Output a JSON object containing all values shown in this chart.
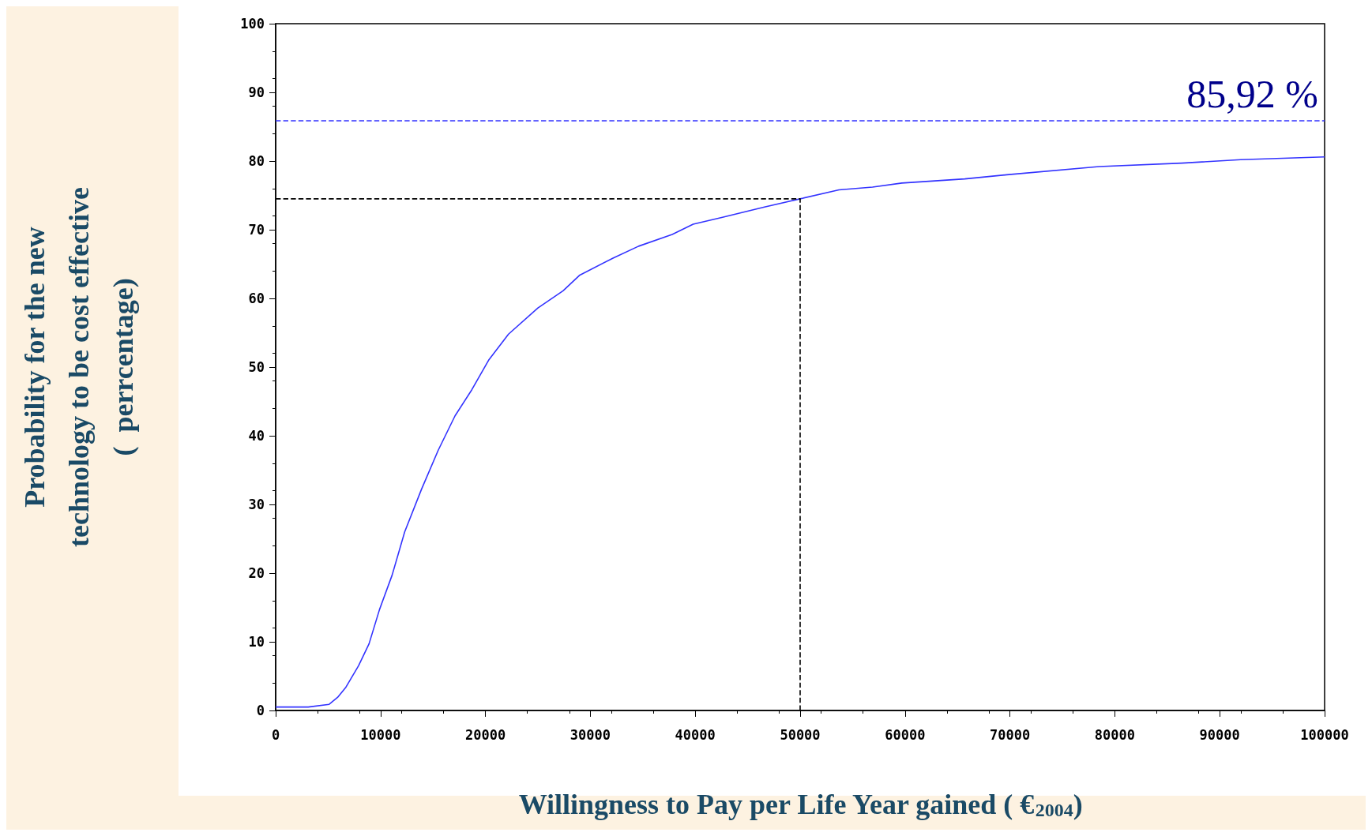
{
  "chart_data": {
    "type": "line",
    "xlabel": "Willingness to Pay per Life Year gained ( €$_{2004}$)",
    "ylabel": "Probability for the new\ntechnology to be cost effective\n(  perrcentage)",
    "xlim": [
      0,
      100000
    ],
    "xticks": [
      0,
      10000,
      20000,
      30000,
      40000,
      50000,
      60000,
      70000,
      80000,
      90000,
      100000
    ],
    "ylim": [
      0,
      100
    ],
    "yticks": [
      0,
      10,
      20,
      30,
      40,
      50,
      60,
      70,
      80,
      90,
      100
    ],
    "marker": "none",
    "line_style": "solid",
    "series": [
      {
        "color": "#3333ff",
        "x": [
          0,
          3100,
          5100,
          5900,
          6700,
          7900,
          8900,
          9900,
          11100,
          12300,
          13900,
          15500,
          17100,
          18700,
          20300,
          22200,
          25000,
          27400,
          29000,
          32200,
          34600,
          37800,
          39800,
          42600,
          46600,
          50000,
          53700,
          56900,
          59700,
          65700,
          69700,
          78500,
          86400,
          92000,
          100000
        ],
        "values": [
          0.5,
          0.5,
          0.9,
          1.9,
          3.4,
          6.5,
          9.7,
          14.7,
          19.7,
          26,
          32.2,
          37.9,
          42.9,
          46.7,
          51,
          54.8,
          58.6,
          61.1,
          63.4,
          65.9,
          67.6,
          69.3,
          70.8,
          71.8,
          73.3,
          74.5,
          75.8,
          76.2,
          76.8,
          77.4,
          78,
          79.2,
          79.7,
          80.2,
          80.6
        ]
      },
      {
        "color": "#000000",
        "line_style": "dashed",
        "x": [
          0,
          50000,
          50000
        ],
        "values": [
          74.5,
          74.5,
          0
        ]
      }
    ],
    "ref_lines": [
      {
        "axis": "y",
        "value": 85.92,
        "label": "85,92 %",
        "color": "#3333ff",
        "line_style": "dashed"
      }
    ]
  }
}
